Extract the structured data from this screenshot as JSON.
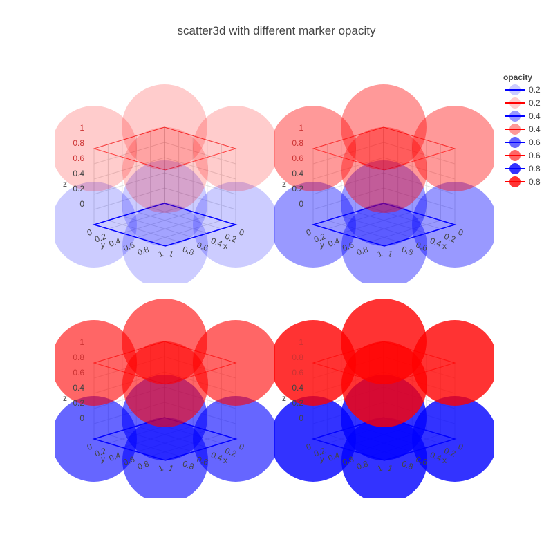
{
  "chart_data": {
    "type": "scatter3d",
    "title": "scatter3d with different marker opacity",
    "legend_title": "opacity",
    "legend_placement": "top-right",
    "points": {
      "x": [
        0,
        0,
        1,
        1
      ],
      "y": [
        0,
        1,
        0,
        1
      ]
    },
    "z_low": 0,
    "z_high": 1,
    "colors": {
      "blue": "#0000ff",
      "red": "#ff0000"
    },
    "traces": [
      {
        "legend": "0.2",
        "color": "blue",
        "opacity": 0.2,
        "z": 0
      },
      {
        "legend": "0.2",
        "color": "red",
        "opacity": 0.2,
        "z": 1
      },
      {
        "legend": "0.4",
        "color": "blue",
        "opacity": 0.4,
        "z": 0
      },
      {
        "legend": "0.4",
        "color": "red",
        "opacity": 0.4,
        "z": 1
      },
      {
        "legend": "0.6",
        "color": "blue",
        "opacity": 0.6,
        "z": 0
      },
      {
        "legend": "0.6",
        "color": "red",
        "opacity": 0.6,
        "z": 1
      },
      {
        "legend": "0.8",
        "color": "blue",
        "opacity": 0.8,
        "z": 0
      },
      {
        "legend": "0.8",
        "color": "red",
        "opacity": 0.8,
        "z": 1
      }
    ],
    "scenes": [
      {
        "name": "scene-1",
        "opacity": 0.2
      },
      {
        "name": "scene-2",
        "opacity": 0.4
      },
      {
        "name": "scene-3",
        "opacity": 0.6
      },
      {
        "name": "scene-4",
        "opacity": 0.8
      }
    ],
    "x_axis": {
      "title": "x",
      "ticks": [
        "0",
        "0.2",
        "0.4",
        "0.6",
        "0.8",
        "1"
      ],
      "range": [
        0,
        1
      ]
    },
    "y_axis": {
      "title": "y",
      "ticks": [
        "0",
        "0.2",
        "0.4",
        "0.6",
        "0.8",
        "1"
      ],
      "range": [
        0,
        1
      ]
    },
    "z_axis": {
      "title": "z",
      "ticks": [
        "0",
        "0.2",
        "0.4",
        "0.6",
        "0.8",
        "1"
      ],
      "range": [
        0,
        1
      ]
    },
    "grid": true
  }
}
